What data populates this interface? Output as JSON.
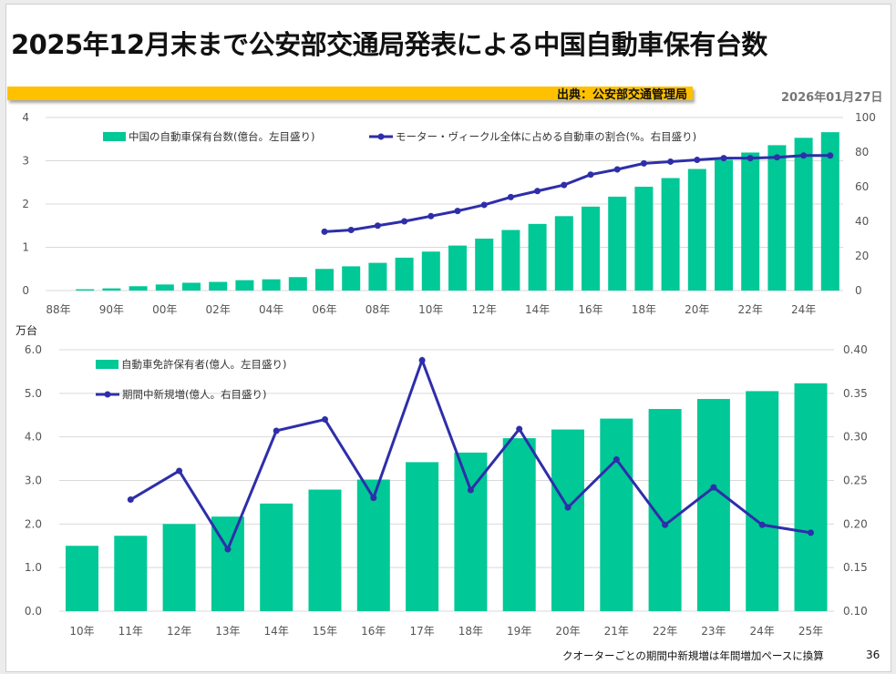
{
  "title": "2025年12月末まで公安部交通局発表による中国自動車保有台数",
  "source": "出典：公安部交通管理局",
  "date": "2026年01月27日",
  "footnote": "クオーターごとの期間中新規増は年間増加ペースに換算",
  "page_number": "36",
  "colors": {
    "bar": "#00c896",
    "line": "#2e2eaa",
    "accent": "#ffc000"
  },
  "chart_data": [
    {
      "type": "bar+line",
      "categories": [
        "88年",
        "",
        "90年",
        "",
        "00年",
        "",
        "02年",
        "",
        "04年",
        "",
        "06年",
        "",
        "08年",
        "",
        "10年",
        "",
        "12年",
        "",
        "14年",
        "",
        "16年",
        "",
        "18年",
        "",
        "20年",
        "",
        "22年",
        "",
        "24年",
        ""
      ],
      "left_axis": {
        "ylim": [
          0,
          4
        ],
        "ticks": [
          "0",
          "1",
          "2",
          "3",
          "4"
        ]
      },
      "right_axis": {
        "ylim": [
          0,
          100
        ],
        "ticks": [
          "0",
          "20",
          "40",
          "60",
          "80",
          "100"
        ]
      },
      "grid": true,
      "legend": "top",
      "series": [
        {
          "name": "中国の自動車保有台数(億台。左目盛り)",
          "kind": "bar",
          "axis": "left",
          "values": [
            0,
            0.03,
            0.05,
            0.1,
            0.14,
            0.18,
            0.2,
            0.24,
            0.26,
            0.31,
            0.5,
            0.56,
            0.64,
            0.76,
            0.9,
            1.04,
            1.2,
            1.4,
            1.54,
            1.72,
            1.94,
            2.17,
            2.4,
            2.6,
            2.81,
            3.02,
            3.19,
            3.36,
            3.53,
            3.66
          ]
        },
        {
          "name": "モーター・ヴィークル全体に占める自動車の割合(%。右目盛り)",
          "kind": "line",
          "axis": "right",
          "values": [
            null,
            null,
            null,
            null,
            null,
            null,
            null,
            null,
            null,
            null,
            34,
            35,
            37.5,
            40,
            43,
            46,
            49.5,
            54,
            57.5,
            61,
            67,
            70,
            73.5,
            74.5,
            75.5,
            76.5,
            76.5,
            77,
            78,
            78
          ]
        }
      ]
    },
    {
      "type": "bar+line",
      "unit_label": "万台",
      "categories": [
        "10年",
        "11年",
        "12年",
        "13年",
        "14年",
        "15年",
        "16年",
        "17年",
        "18年",
        "19年",
        "20年",
        "21年",
        "22年",
        "23年",
        "24年",
        "25年"
      ],
      "left_axis": {
        "ylim": [
          0,
          6
        ],
        "ticks": [
          "0.0",
          "1.0",
          "2.0",
          "3.0",
          "4.0",
          "5.0",
          "6.0"
        ]
      },
      "right_axis": {
        "ylim": [
          0.1,
          0.4
        ],
        "ticks": [
          "0.10",
          "0.15",
          "0.20",
          "0.25",
          "0.30",
          "0.35",
          "0.40"
        ]
      },
      "grid": true,
      "legend": "top-left",
      "series": [
        {
          "name": "自動車免許保有者(億人。左目盛り)",
          "kind": "bar",
          "axis": "left",
          "values": [
            1.5,
            1.73,
            2.0,
            2.17,
            2.47,
            2.79,
            3.02,
            3.42,
            3.64,
            3.97,
            4.17,
            4.42,
            4.64,
            4.87,
            5.05,
            5.23
          ]
        },
        {
          "name": "期間中新規増(億人。右目盛り)",
          "kind": "line",
          "axis": "right",
          "values": [
            null,
            0.228,
            0.261,
            0.171,
            0.307,
            0.32,
            0.23,
            0.388,
            0.239,
            0.309,
            0.219,
            0.274,
            0.199,
            0.242,
            0.199,
            0.19
          ]
        }
      ]
    }
  ]
}
